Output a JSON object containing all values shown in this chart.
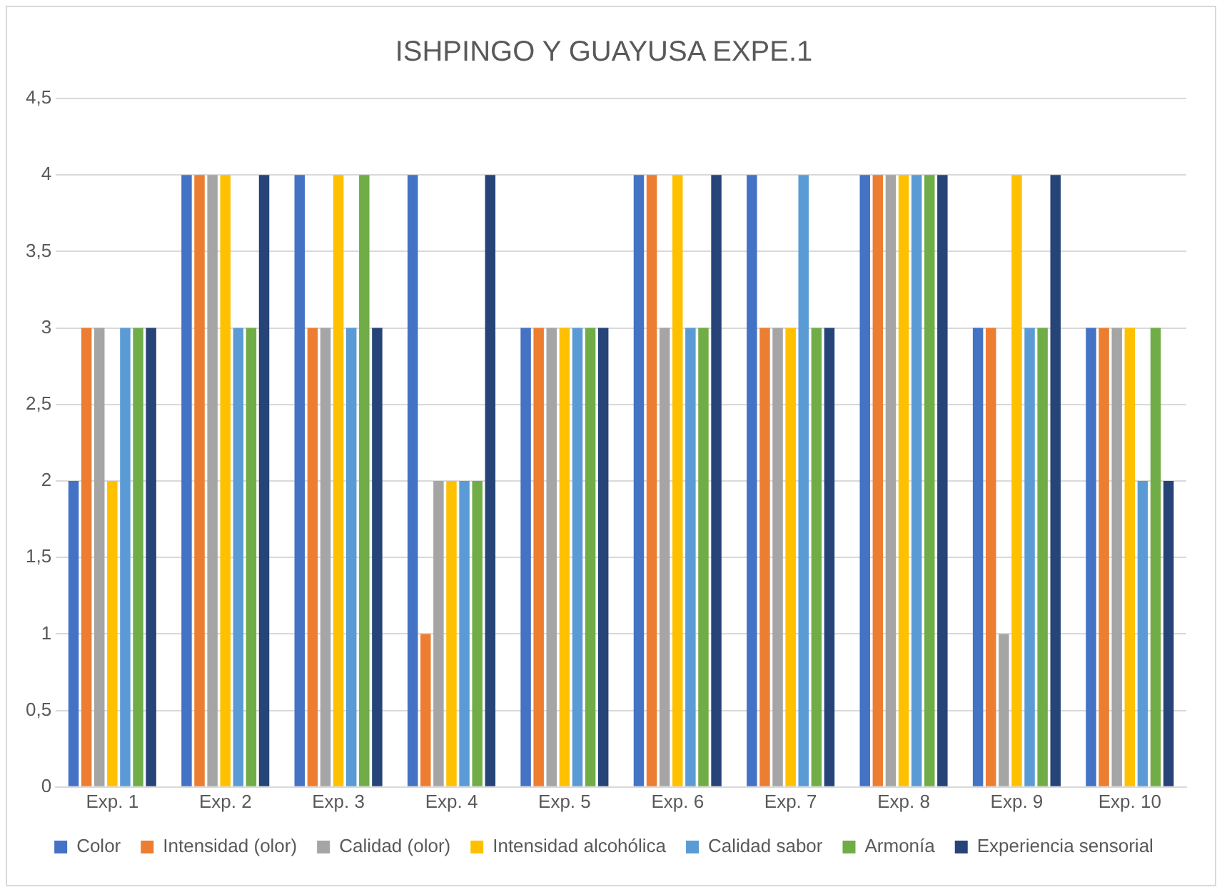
{
  "chart_data": {
    "type": "bar",
    "title": "ISHPINGO Y GUAYUSA EXPE.1",
    "categories": [
      "Exp. 1",
      "Exp. 2",
      "Exp. 3",
      "Exp. 4",
      "Exp. 5",
      "Exp. 6",
      "Exp. 7",
      "Exp. 8",
      "Exp. 9",
      "Exp. 10"
    ],
    "series": [
      {
        "name": "Color",
        "color": "#4472c4",
        "values": [
          2,
          4,
          4,
          4,
          3,
          4,
          4,
          4,
          3,
          3
        ]
      },
      {
        "name": "Intensidad (olor)",
        "color": "#ed7d31",
        "values": [
          3,
          4,
          3,
          1,
          3,
          4,
          3,
          4,
          3,
          3
        ]
      },
      {
        "name": "Calidad (olor)",
        "color": "#a5a5a5",
        "values": [
          3,
          4,
          3,
          2,
          3,
          3,
          3,
          4,
          1,
          3
        ]
      },
      {
        "name": "Intensidad alcohólica",
        "color": "#ffc000",
        "values": [
          2,
          4,
          4,
          2,
          3,
          4,
          3,
          4,
          4,
          3
        ]
      },
      {
        "name": "Calidad sabor",
        "color": "#5b9bd5",
        "values": [
          3,
          3,
          3,
          2,
          3,
          3,
          4,
          4,
          3,
          2
        ]
      },
      {
        "name": "Armonía",
        "color": "#70ad47",
        "values": [
          3,
          3,
          4,
          2,
          3,
          3,
          3,
          4,
          3,
          3
        ]
      },
      {
        "name": "Experiencia sensorial",
        "color": "#264478",
        "values": [
          3,
          4,
          3,
          4,
          3,
          4,
          3,
          4,
          4,
          2
        ]
      }
    ],
    "ylim": [
      0,
      4.5
    ],
    "yticks": [
      0,
      {
        "value": 0.5,
        "label": "0,5"
      },
      1,
      {
        "value": 1.5,
        "label": "1,5"
      },
      2,
      {
        "value": 2.5,
        "label": "2,5"
      },
      3,
      {
        "value": 3.5,
        "label": "3,5"
      },
      4,
      {
        "value": 4.5,
        "label": "4,5"
      }
    ],
    "grid": "y",
    "legend": "bottom"
  }
}
